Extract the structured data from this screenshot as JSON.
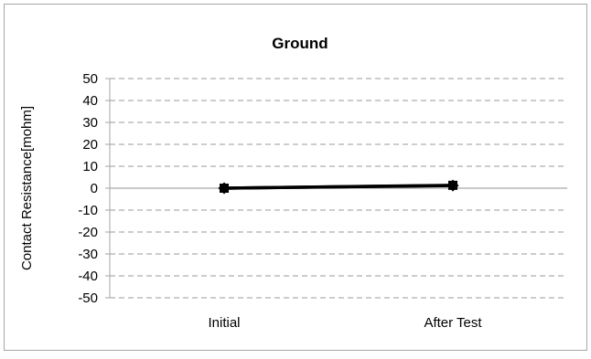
{
  "chart_data": {
    "type": "line",
    "title": "Ground",
    "xlabel": "",
    "ylabel": "Contact Resistance[mohm]",
    "categories": [
      "Initial",
      "After Test"
    ],
    "series": [
      {
        "values": [
          0.0,
          1.2
        ],
        "marker": "diamond",
        "color": "#000000"
      },
      {
        "values": [
          0.0,
          1.3
        ],
        "marker": "square",
        "color": "#000000"
      }
    ],
    "ylim": [
      -50,
      50
    ],
    "yticks": [
      50,
      40,
      30,
      20,
      10,
      0,
      -10,
      -20,
      -30,
      -40,
      -50
    ],
    "grid": true,
    "grid_style": "dashed",
    "legend": "none"
  }
}
